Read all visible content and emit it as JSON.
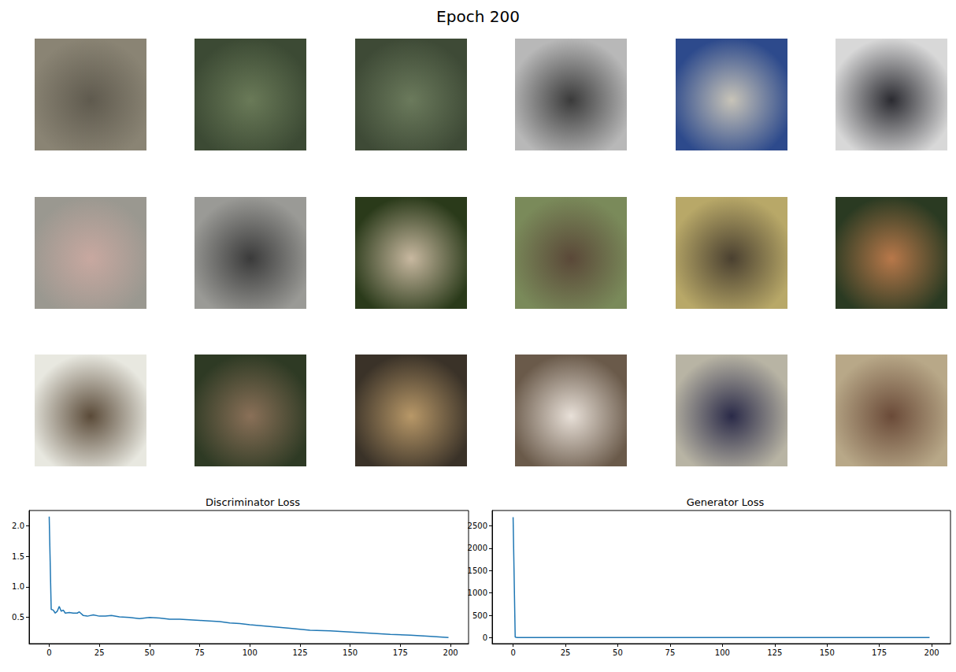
{
  "title": "Epoch 200",
  "chart_data": [
    {
      "type": "line",
      "title": "Discriminator Loss",
      "x": [
        0,
        1,
        2,
        3,
        4,
        5,
        6,
        7,
        8,
        10,
        12,
        14,
        15,
        17,
        19,
        22,
        25,
        28,
        31,
        35,
        40,
        45,
        50,
        55,
        60,
        65,
        70,
        75,
        80,
        85,
        90,
        95,
        100,
        110,
        120,
        130,
        140,
        150,
        160,
        170,
        180,
        190,
        199
      ],
      "values": [
        2.15,
        0.63,
        0.62,
        0.57,
        0.6,
        0.68,
        0.6,
        0.62,
        0.57,
        0.58,
        0.57,
        0.57,
        0.59,
        0.53,
        0.52,
        0.54,
        0.52,
        0.52,
        0.53,
        0.51,
        0.5,
        0.48,
        0.5,
        0.49,
        0.47,
        0.47,
        0.46,
        0.45,
        0.44,
        0.43,
        0.41,
        0.4,
        0.38,
        0.35,
        0.32,
        0.29,
        0.28,
        0.26,
        0.24,
        0.22,
        0.21,
        0.19,
        0.17
      ],
      "color": "#1f77b4",
      "xlim": [
        -10,
        209
      ],
      "xticks": [
        0,
        25,
        50,
        75,
        100,
        125,
        150,
        175,
        200
      ],
      "ylim": [
        0.07,
        2.25
      ],
      "yticks": [
        0.5,
        {
          "value": 1.0,
          "label": "1.0"
        },
        1.5,
        {
          "value": 2.0,
          "label": "2.0"
        }
      ],
      "grid": false
    },
    {
      "type": "line",
      "title": "Generator Loss",
      "x": [
        0,
        1,
        2,
        5,
        10,
        25,
        50,
        75,
        100,
        125,
        150,
        175,
        199
      ],
      "values": [
        2690,
        15,
        8,
        6,
        6,
        6,
        5,
        5,
        5,
        5,
        5,
        5,
        5
      ],
      "color": "#1f77b4",
      "xlim": [
        -10,
        209
      ],
      "xticks": [
        0,
        25,
        50,
        75,
        100,
        125,
        150,
        175,
        200
      ],
      "ylim": [
        -130,
        2840
      ],
      "yticks": [
        0,
        500,
        1000,
        1500,
        2000,
        2500
      ],
      "grid": false
    }
  ]
}
